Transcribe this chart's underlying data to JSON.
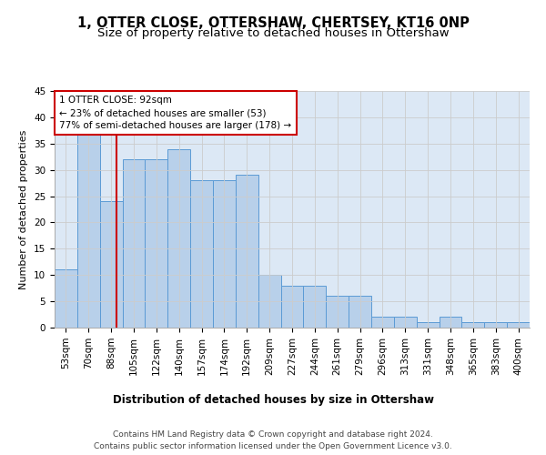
{
  "title": "1, OTTER CLOSE, OTTERSHAW, CHERTSEY, KT16 0NP",
  "subtitle": "Size of property relative to detached houses in Ottershaw",
  "xlabel": "Distribution of detached houses by size in Ottershaw",
  "ylabel": "Number of detached properties",
  "bin_labels": [
    "53sqm",
    "70sqm",
    "88sqm",
    "105sqm",
    "122sqm",
    "140sqm",
    "157sqm",
    "174sqm",
    "192sqm",
    "209sqm",
    "227sqm",
    "244sqm",
    "261sqm",
    "279sqm",
    "296sqm",
    "313sqm",
    "331sqm",
    "348sqm",
    "365sqm",
    "383sqm",
    "400sqm"
  ],
  "bar_values": [
    11,
    37,
    24,
    32,
    32,
    34,
    28,
    28,
    29,
    10,
    8,
    8,
    6,
    6,
    2,
    2,
    1,
    2,
    1,
    1,
    1
  ],
  "bar_color": "#b8d0ea",
  "bar_edge_color": "#5b9bd5",
  "property_size": "92sqm",
  "annotation_text": "1 OTTER CLOSE: 92sqm\n← 23% of detached houses are smaller (53)\n77% of semi-detached houses are larger (178) →",
  "annotation_box_color": "#ffffff",
  "annotation_box_edge": "#cc0000",
  "red_line_color": "#cc0000",
  "ylim": [
    0,
    45
  ],
  "yticks": [
    0,
    5,
    10,
    15,
    20,
    25,
    30,
    35,
    40,
    45
  ],
  "grid_color": "#cccccc",
  "bg_color": "#dce8f5",
  "footnote": "Contains HM Land Registry data © Crown copyright and database right 2024.\nContains public sector information licensed under the Open Government Licence v3.0.",
  "title_fontsize": 10.5,
  "subtitle_fontsize": 9.5,
  "xlabel_fontsize": 8.5,
  "ylabel_fontsize": 8,
  "tick_fontsize": 7.5,
  "annotation_fontsize": 7.5,
  "footnote_fontsize": 6.5
}
